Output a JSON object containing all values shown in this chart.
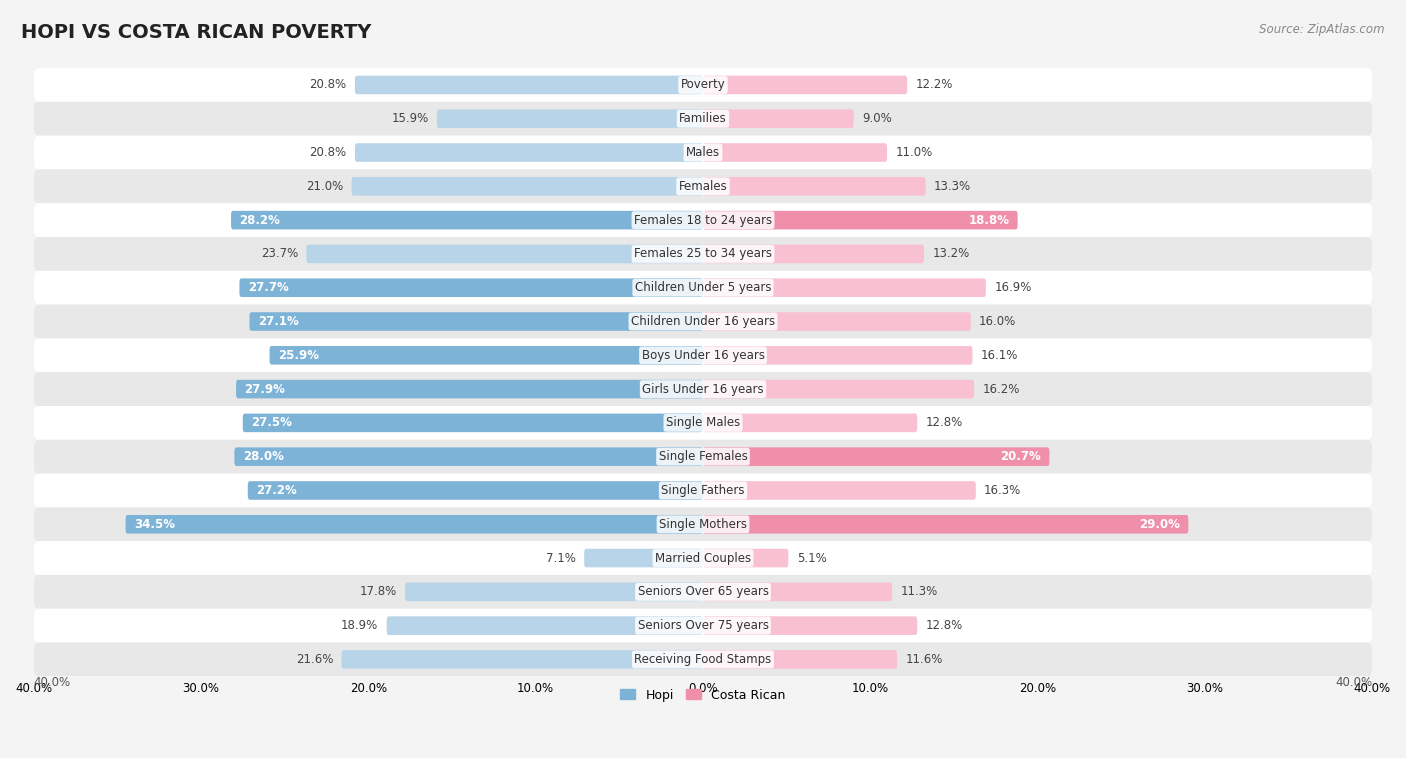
{
  "title": "HOPI VS COSTA RICAN POVERTY",
  "source": "Source: ZipAtlas.com",
  "categories": [
    "Poverty",
    "Families",
    "Males",
    "Females",
    "Females 18 to 24 years",
    "Females 25 to 34 years",
    "Children Under 5 years",
    "Children Under 16 years",
    "Boys Under 16 years",
    "Girls Under 16 years",
    "Single Males",
    "Single Females",
    "Single Fathers",
    "Single Mothers",
    "Married Couples",
    "Seniors Over 65 years",
    "Seniors Over 75 years",
    "Receiving Food Stamps"
  ],
  "hopi": [
    20.8,
    15.9,
    20.8,
    21.0,
    28.2,
    23.7,
    27.7,
    27.1,
    25.9,
    27.9,
    27.5,
    28.0,
    27.2,
    34.5,
    7.1,
    17.8,
    18.9,
    21.6
  ],
  "costa_rican": [
    12.2,
    9.0,
    11.0,
    13.3,
    18.8,
    13.2,
    16.9,
    16.0,
    16.1,
    16.2,
    12.8,
    20.7,
    16.3,
    29.0,
    5.1,
    11.3,
    12.8,
    11.6
  ],
  "hopi_color": "#7eb3d8",
  "costa_rican_color": "#f08faa",
  "hopi_color_light": "#b8d4e8",
  "costa_rican_color_light": "#f8c0d0",
  "axis_max": 40.0,
  "background_color": "#f4f4f4",
  "row_color_odd": "#ffffff",
  "row_color_even": "#e8e8e8",
  "bar_height": 0.55,
  "title_fontsize": 14,
  "label_fontsize": 8.5,
  "value_fontsize": 8.5,
  "legend_fontsize": 9,
  "hopi_threshold": 25.0,
  "costa_rican_threshold": 18.0
}
